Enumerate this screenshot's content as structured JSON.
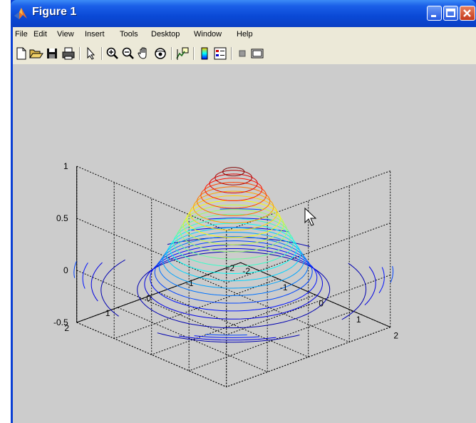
{
  "window": {
    "title": "Figure 1",
    "icon": "matlab-icon",
    "caption_buttons": [
      "minimize-icon",
      "maximize-icon",
      "close-icon"
    ]
  },
  "menu": [
    "File",
    "Edit",
    "View",
    "Insert",
    "Tools",
    "Desktop",
    "Window",
    "Help"
  ],
  "toolbar": {
    "items": [
      "new-figure-icon",
      "open-file-icon",
      "save-icon",
      "print-icon",
      "select-arrow-icon",
      "zoom-in-icon",
      "zoom-out-icon",
      "pan-icon",
      "rotate-3d-icon",
      "data-cursor-icon",
      "colorbar-icon",
      "legend-icon",
      "hide-plot-tools-icon",
      "show-plot-tools-icon"
    ]
  },
  "colors": {
    "title_bar": "#0a49d6",
    "menu_bg": "#ece9d8",
    "figure_bg": "#cccccc",
    "close_button": "#c4381a"
  },
  "plot": {
    "type": "contour3",
    "z_ticks": [
      "1",
      "0.5",
      "0",
      "-0.5"
    ],
    "x_ticks": [
      "-2",
      "-1",
      "0",
      "1",
      "2"
    ],
    "y_ticks": [
      "-2",
      "-1",
      "0",
      "1",
      "2"
    ],
    "zlim": [
      -0.5,
      1
    ],
    "xlim": [
      -2,
      2
    ],
    "ylim": [
      -2,
      2
    ],
    "grid": true,
    "box": true,
    "colormap": "jet"
  }
}
